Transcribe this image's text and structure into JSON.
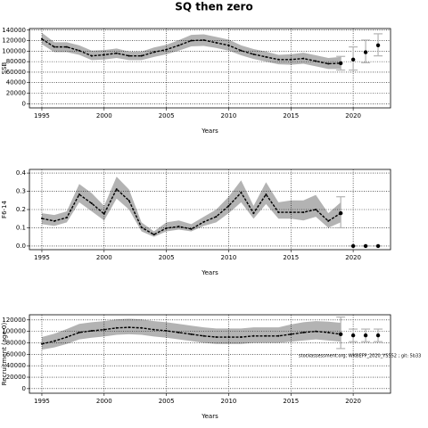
{
  "title": "SQ then zero",
  "chart_data": [
    {
      "type": "line",
      "ylabel": "SSB",
      "xlabel": "Years",
      "line_color": "#000000",
      "band_color": "#b3b3b3",
      "bar_color": "#b3b3b3",
      "grid": true,
      "xlim": [
        1994,
        2023
      ],
      "xticks": [
        1995,
        2000,
        2005,
        2010,
        2015,
        2020
      ],
      "ylim": [
        -8000,
        143000
      ],
      "yticks": [
        0,
        20000,
        40000,
        60000,
        80000,
        100000,
        120000,
        140000
      ],
      "x": [
        1995,
        1996,
        1997,
        1998,
        1999,
        2000,
        2001,
        2002,
        2003,
        2004,
        2005,
        2006,
        2007,
        2008,
        2009,
        2010,
        2011,
        2012,
        2013,
        2014,
        2015,
        2016,
        2017,
        2018,
        2019
      ],
      "values": [
        123000,
        108000,
        108000,
        101000,
        91000,
        93000,
        96000,
        91000,
        91000,
        98000,
        103000,
        111000,
        120000,
        121000,
        116000,
        111000,
        101000,
        94000,
        89000,
        84000,
        84000,
        86000,
        81000,
        76000,
        77000
      ],
      "lower": [
        113000,
        98000,
        98000,
        93000,
        83000,
        84000,
        87000,
        83000,
        83000,
        89000,
        94000,
        101000,
        109000,
        110000,
        106000,
        101000,
        92000,
        85000,
        80000,
        75000,
        74000,
        76000,
        71000,
        66000,
        66000
      ],
      "upper": [
        135000,
        117000,
        117000,
        111000,
        101000,
        102000,
        105000,
        99000,
        99000,
        107000,
        112000,
        121000,
        131000,
        132000,
        127000,
        122000,
        111000,
        104000,
        99000,
        93000,
        94000,
        97000,
        92000,
        87000,
        89000
      ],
      "forecast": {
        "x": [
          2019,
          2020,
          2021,
          2022
        ],
        "values": [
          77000,
          84000,
          98000,
          111000
        ],
        "lower": [
          64000,
          64000,
          78000,
          91000
        ],
        "upper": [
          90000,
          108000,
          121000,
          133000
        ]
      }
    },
    {
      "type": "line",
      "ylabel": "F6-14",
      "xlabel": "Years",
      "line_color": "#000000",
      "band_color": "#b3b3b3",
      "bar_color": "#b3b3b3",
      "grid": true,
      "xlim": [
        1994,
        2023
      ],
      "xticks": [
        1995,
        2000,
        2005,
        2010,
        2015,
        2020
      ],
      "ylim": [
        -0.02,
        0.42
      ],
      "yticks": [
        {
          "value": 0,
          "label": "0.0"
        },
        0.1,
        0.2,
        0.3,
        0.4
      ],
      "x": [
        1995,
        1996,
        1997,
        1998,
        1999,
        2000,
        2001,
        2002,
        2003,
        2004,
        2005,
        2006,
        2007,
        2008,
        2009,
        2010,
        2011,
        2012,
        2013,
        2014,
        2015,
        2016,
        2017,
        2018,
        2019
      ],
      "values": [
        0.151,
        0.137,
        0.156,
        0.283,
        0.234,
        0.176,
        0.312,
        0.249,
        0.102,
        0.063,
        0.098,
        0.107,
        0.093,
        0.132,
        0.161,
        0.22,
        0.293,
        0.18,
        0.283,
        0.185,
        0.185,
        0.185,
        0.2,
        0.137,
        0.18
      ],
      "lower": [
        0.12,
        0.11,
        0.13,
        0.24,
        0.19,
        0.14,
        0.26,
        0.2,
        0.08,
        0.05,
        0.08,
        0.09,
        0.08,
        0.11,
        0.13,
        0.18,
        0.24,
        0.15,
        0.23,
        0.15,
        0.15,
        0.14,
        0.16,
        0.1,
        0.13
      ],
      "upper": [
        0.18,
        0.17,
        0.19,
        0.34,
        0.29,
        0.22,
        0.38,
        0.31,
        0.13,
        0.08,
        0.13,
        0.14,
        0.12,
        0.16,
        0.2,
        0.27,
        0.36,
        0.22,
        0.35,
        0.24,
        0.25,
        0.25,
        0.28,
        0.18,
        0.24
      ],
      "forecast": {
        "x": [
          2019,
          2020,
          2021,
          2022
        ],
        "values": [
          0.18,
          0,
          0,
          0
        ],
        "lower": [
          0.1,
          0,
          0,
          0
        ],
        "upper": [
          0.27,
          0,
          0,
          0
        ]
      }
    },
    {
      "type": "line",
      "ylabel": "Recruitment (age 0)",
      "xlabel": "Years",
      "line_color": "#000000",
      "band_color": "#b3b3b3",
      "bar_color": "#b3b3b3",
      "grid": true,
      "annotation": "stockassessment.org, WKBEFP_2020_YS552 ; git: 5b33",
      "xlim": [
        1994,
        2023
      ],
      "xticks": [
        1995,
        2000,
        2005,
        2010,
        2015,
        2020
      ],
      "ylim": [
        -8000,
        129000
      ],
      "yticks": [
        0,
        20000,
        40000,
        60000,
        80000,
        100000,
        120000
      ],
      "x": [
        1995,
        1996,
        1997,
        1998,
        1999,
        2000,
        2001,
        2002,
        2003,
        2004,
        2005,
        2006,
        2007,
        2008,
        2009,
        2010,
        2011,
        2012,
        2013,
        2014,
        2015,
        2016,
        2017,
        2018,
        2019
      ],
      "values": [
        78000,
        83000,
        90000,
        98000,
        101000,
        103000,
        106000,
        107000,
        106000,
        103000,
        101000,
        98000,
        95000,
        92000,
        90000,
        90000,
        90000,
        92000,
        92000,
        92000,
        95000,
        98000,
        100000,
        98000,
        95000
      ],
      "lower": [
        68000,
        72000,
        78000,
        86000,
        89000,
        91000,
        94000,
        95000,
        94000,
        91000,
        89000,
        86000,
        83000,
        80000,
        78000,
        78000,
        78000,
        80000,
        80000,
        80000,
        82000,
        84000,
        86000,
        84000,
        82000
      ],
      "upper": [
        90000,
        96000,
        104000,
        113000,
        116000,
        118000,
        121000,
        122000,
        121000,
        118000,
        116000,
        113000,
        110000,
        107000,
        105000,
        105000,
        105000,
        107000,
        107000,
        107000,
        112000,
        116000,
        118000,
        117000,
        115000
      ],
      "forecast": {
        "x": [
          2019,
          2020,
          2021,
          2022
        ],
        "values": [
          95000,
          93000,
          93000,
          93000
        ],
        "lower": [
          70000,
          82000,
          82000,
          82000
        ],
        "upper": [
          125000,
          104000,
          104000,
          104000
        ]
      }
    }
  ]
}
